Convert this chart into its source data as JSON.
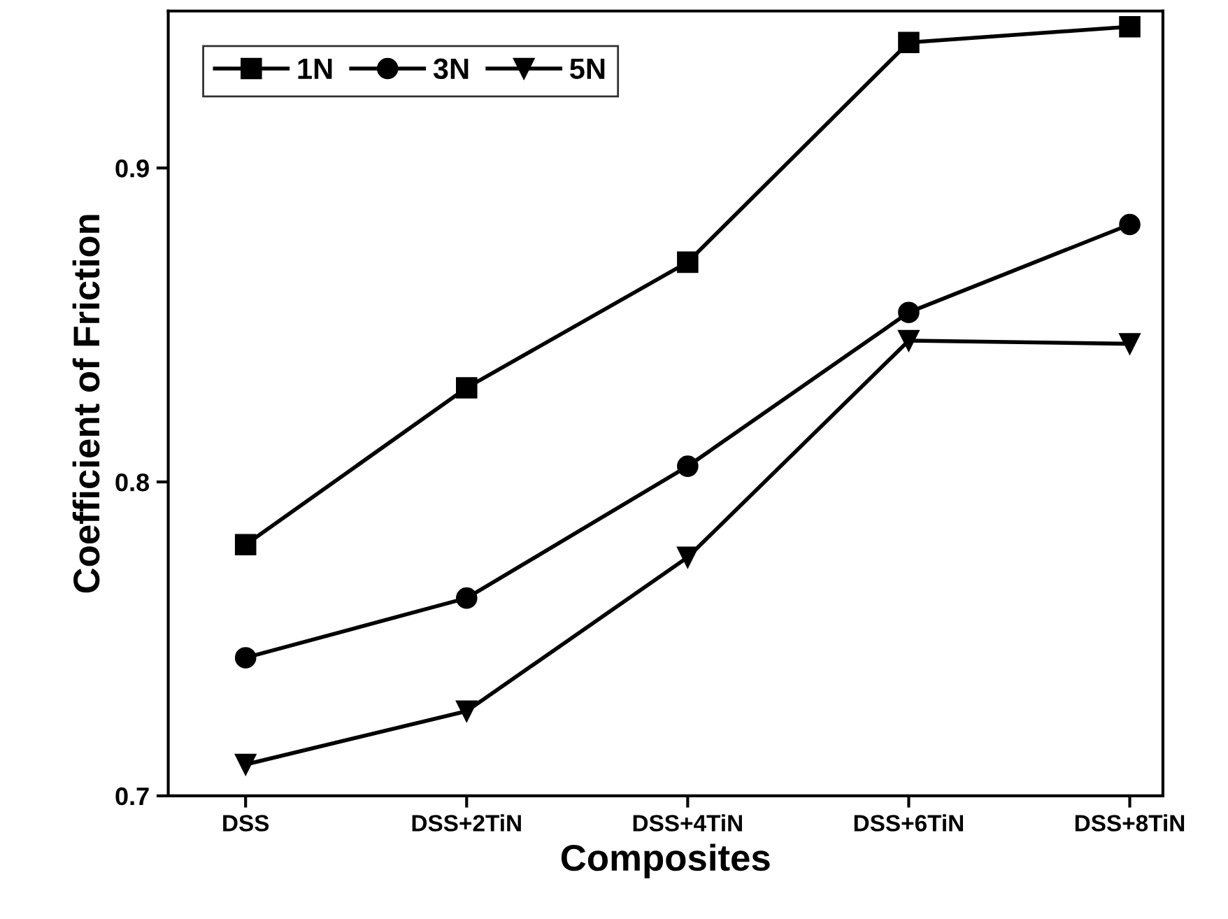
{
  "chart_data": {
    "type": "line",
    "xlabel": "Composites",
    "ylabel": "Coefficient of Friction",
    "categories": [
      "DSS",
      "DSS+2TiN",
      "DSS+4TiN",
      "DSS+6TiN",
      "DSS+8TiN"
    ],
    "series": [
      {
        "name": "1N",
        "color": "#000000",
        "marker": "square",
        "values": [
          0.78,
          0.83,
          0.87,
          0.94,
          0.945
        ]
      },
      {
        "name": "3N",
        "color": "#000000",
        "marker": "circle",
        "values": [
          0.744,
          0.763,
          0.805,
          0.854,
          0.882
        ]
      },
      {
        "name": "5N",
        "color": "#000000",
        "marker": "triangle",
        "values": [
          0.71,
          0.727,
          0.776,
          0.845,
          0.844
        ]
      }
    ],
    "ylim": [
      0.7,
      0.95
    ],
    "yticks": [
      0.7,
      0.8,
      0.9
    ],
    "grid": false,
    "legend": "top left",
    "line_style": "solid"
  }
}
